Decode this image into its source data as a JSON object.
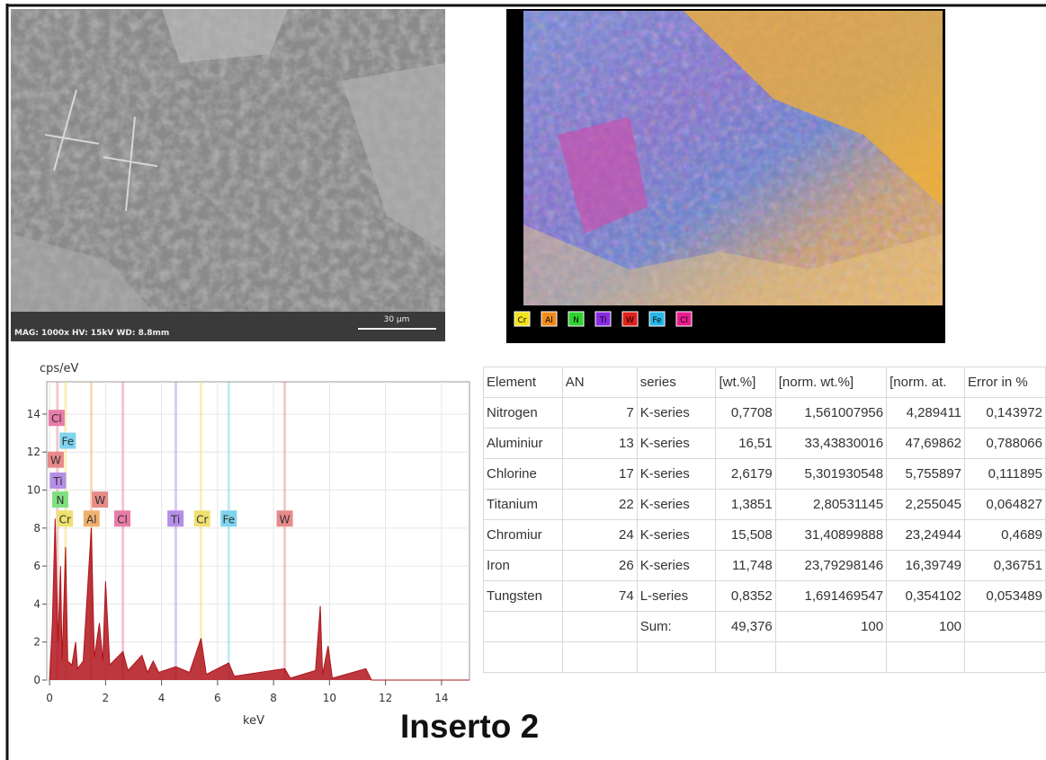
{
  "sem_image": {
    "info": "MAG: 1000x  HV: 15kV  WD: 8.8mm",
    "scale": "30 µm"
  },
  "map": {
    "legend": [
      {
        "label": "Cr",
        "color": "#f2e21a"
      },
      {
        "label": "Al",
        "color": "#f08a1c"
      },
      {
        "label": "N",
        "color": "#2fd12f"
      },
      {
        "label": "Ti",
        "color": "#8a2be2"
      },
      {
        "label": "W",
        "color": "#e0201c"
      },
      {
        "label": "Fe",
        "color": "#27b7e8"
      },
      {
        "label": "Cl",
        "color": "#e81c8c"
      }
    ]
  },
  "chart_data": {
    "type": "area",
    "y_label": "cps/eV",
    "x_label": "keV",
    "x": [
      0,
      0.1,
      0.2,
      0.3,
      0.39,
      0.45,
      0.57,
      0.65,
      0.8,
      0.93,
      1.0,
      1.2,
      1.49,
      1.6,
      1.78,
      1.9,
      2.0,
      2.15,
      2.62,
      2.8,
      3.3,
      3.5,
      3.7,
      3.9,
      4.51,
      5.0,
      5.41,
      5.6,
      6.4,
      6.6,
      8.4,
      8.6,
      9.5,
      9.67,
      9.75,
      9.95,
      10.1,
      11.3,
      11.5,
      15
    ],
    "values": [
      0,
      3,
      8.5,
      2,
      6,
      1,
      7,
      1,
      0.8,
      2,
      0.6,
      1,
      8,
      1.2,
      3,
      1,
      5.2,
      0.8,
      1.5,
      0.5,
      1.3,
      0.4,
      1.0,
      0.4,
      0.7,
      0.4,
      2.2,
      0.3,
      0.9,
      0.2,
      0.6,
      0.1,
      0.5,
      3.9,
      0.3,
      1.8,
      0.1,
      0.6,
      0,
      0
    ],
    "color": "#b0141c",
    "xlim": [
      -0.1,
      15
    ],
    "ylim": [
      0,
      15.7
    ],
    "xticks": [
      0,
      2,
      4,
      6,
      8,
      10,
      12,
      14
    ],
    "yticks": [
      0,
      2,
      4,
      6,
      8,
      10,
      12,
      14
    ],
    "grid": true,
    "element_lines": [
      {
        "x": 0.28,
        "color": "#e88a8a"
      },
      {
        "x": 0.57,
        "color": "#f0e070"
      },
      {
        "x": 1.49,
        "color": "#f0b070"
      },
      {
        "x": 2.62,
        "color": "#e87ca8"
      },
      {
        "x": 4.51,
        "color": "#b58ee8"
      },
      {
        "x": 5.41,
        "color": "#f0e070"
      },
      {
        "x": 6.4,
        "color": "#7fd4ef"
      },
      {
        "x": 8.4,
        "color": "#e88a8a"
      }
    ],
    "peak_labels": [
      {
        "label": "Cl",
        "x": 0.25,
        "y": 13.8,
        "color": "#e87ca8"
      },
      {
        "label": "Fe",
        "x": 0.65,
        "y": 12.6,
        "color": "#7fd4ef"
      },
      {
        "label": "W",
        "x": 0.22,
        "y": 11.6,
        "color": "#e88a8a"
      },
      {
        "label": "Ti",
        "x": 0.3,
        "y": 10.5,
        "color": "#b58ee8"
      },
      {
        "label": "N",
        "x": 0.38,
        "y": 9.5,
        "color": "#7fe07f"
      },
      {
        "label": "W",
        "x": 1.8,
        "y": 9.5,
        "color": "#e88a8a"
      },
      {
        "label": "Cr",
        "x": 0.55,
        "y": 8.5,
        "color": "#f0e070"
      },
      {
        "label": "Al",
        "x": 1.5,
        "y": 8.5,
        "color": "#f0b070"
      },
      {
        "label": "Cl",
        "x": 2.6,
        "y": 8.5,
        "color": "#e87ca8"
      },
      {
        "label": "Ti",
        "x": 4.5,
        "y": 8.5,
        "color": "#b58ee8"
      },
      {
        "label": "Cr",
        "x": 5.45,
        "y": 8.5,
        "color": "#f0e070"
      },
      {
        "label": "Fe",
        "x": 6.4,
        "y": 8.5,
        "color": "#7fd4ef"
      },
      {
        "label": "W",
        "x": 8.4,
        "y": 8.5,
        "color": "#e88a8a"
      }
    ]
  },
  "table": {
    "header": [
      "Element",
      "AN",
      "series",
      "[wt.%]",
      "[norm. wt.%]",
      "[norm. at.",
      "Error in %"
    ],
    "rows": [
      [
        "Nitrogen",
        "7",
        "K-series",
        "0,7708",
        "1,561007956",
        "4,289411",
        "0,143972"
      ],
      [
        "Aluminiur",
        "13",
        "K-series",
        "16,51",
        "33,43830016",
        "47,69862",
        "0,788066"
      ],
      [
        "Chlorine",
        "17",
        "K-series",
        "2,6179",
        "5,301930548",
        "5,755897",
        "0,111895"
      ],
      [
        "Titanium",
        "22",
        "K-series",
        "1,3851",
        "2,80531145",
        "2,255045",
        "0,064827"
      ],
      [
        "Chromiur",
        "24",
        "K-series",
        "15,508",
        "31,40899888",
        "23,24944",
        "0,4689"
      ],
      [
        "Iron",
        "26",
        "K-series",
        "11,748",
        "23,79298146",
        "16,39749",
        "0,36751"
      ],
      [
        "Tungsten",
        "74",
        "L-series",
        "0,8352",
        "1,691469547",
        "0,354102",
        "0,053489"
      ],
      [
        null,
        null,
        "Sum:",
        "49,376",
        "100",
        "100",
        null
      ]
    ]
  },
  "caption": "Inserto 2"
}
